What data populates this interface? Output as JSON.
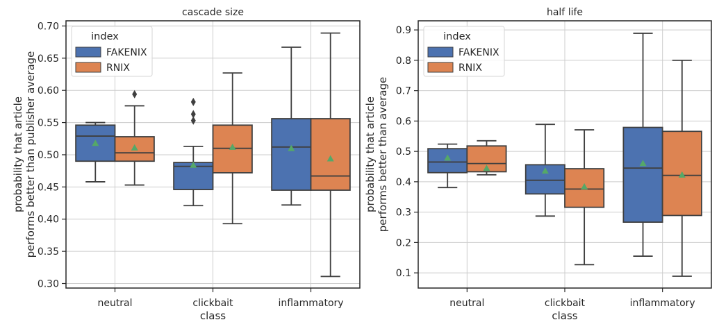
{
  "chart_data": [
    {
      "type": "box",
      "title": "cascade size",
      "xlabel": "class",
      "ylabel_lines": [
        "probability that article",
        "performs better than publisher average"
      ],
      "categories": [
        "neutral",
        "clickbait",
        "inflammatory"
      ],
      "ylim": [
        0.293,
        0.708
      ],
      "yticks": [
        0.3,
        0.35,
        0.4,
        0.45,
        0.5,
        0.55,
        0.6,
        0.65,
        0.7
      ],
      "ytick_labels": [
        "0.30",
        "0.35",
        "0.40",
        "0.45",
        "0.50",
        "0.55",
        "0.60",
        "0.65",
        "0.70"
      ],
      "grid": true,
      "legend": {
        "title": "index",
        "position": "top-left",
        "entries": [
          "FAKENIX",
          "RNIX"
        ]
      },
      "series": [
        {
          "name": "FAKENIX",
          "color": "#4c72b0",
          "boxes": [
            {
              "whislo": 0.458,
              "q1": 0.49,
              "med": 0.529,
              "q3": 0.546,
              "whishi": 0.55,
              "mean": 0.518,
              "fliers": []
            },
            {
              "whislo": 0.421,
              "q1": 0.446,
              "med": 0.482,
              "q3": 0.488,
              "whishi": 0.513,
              "mean": 0.484,
              "fliers": [
                0.553,
                0.563,
                0.582
              ]
            },
            {
              "whislo": 0.422,
              "q1": 0.445,
              "med": 0.512,
              "q3": 0.556,
              "whishi": 0.667,
              "mean": 0.51,
              "fliers": []
            }
          ]
        },
        {
          "name": "RNIX",
          "color": "#dd8452",
          "boxes": [
            {
              "whislo": 0.453,
              "q1": 0.49,
              "med": 0.503,
              "q3": 0.528,
              "whishi": 0.576,
              "mean": 0.511,
              "fliers": [
                0.594
              ]
            },
            {
              "whislo": 0.393,
              "q1": 0.472,
              "med": 0.51,
              "q3": 0.546,
              "whishi": 0.627,
              "mean": 0.512,
              "fliers": []
            },
            {
              "whislo": 0.311,
              "q1": 0.445,
              "med": 0.467,
              "q3": 0.556,
              "whishi": 0.689,
              "mean": 0.494,
              "fliers": []
            }
          ]
        }
      ]
    },
    {
      "type": "box",
      "title": "half life",
      "xlabel": "class",
      "ylabel_lines": [
        "probability that article",
        "performs better than average"
      ],
      "categories": [
        "neutral",
        "clickbait",
        "inflammatory"
      ],
      "ylim": [
        0.05,
        0.93
      ],
      "yticks": [
        0.1,
        0.2,
        0.3,
        0.4,
        0.5,
        0.6,
        0.7,
        0.8,
        0.9
      ],
      "ytick_labels": [
        "0.1",
        "0.2",
        "0.3",
        "0.4",
        "0.5",
        "0.6",
        "0.7",
        "0.8",
        "0.9"
      ],
      "grid": true,
      "legend": {
        "title": "index",
        "position": "top-left",
        "entries": [
          "FAKENIX",
          "RNIX"
        ]
      },
      "series": [
        {
          "name": "FAKENIX",
          "color": "#4c72b0",
          "boxes": [
            {
              "whislo": 0.381,
              "q1": 0.43,
              "med": 0.465,
              "q3": 0.509,
              "whishi": 0.524,
              "mean": 0.479,
              "fliers": []
            },
            {
              "whislo": 0.287,
              "q1": 0.36,
              "med": 0.405,
              "q3": 0.456,
              "whishi": 0.589,
              "mean": 0.436,
              "fliers": []
            },
            {
              "whislo": 0.155,
              "q1": 0.267,
              "med": 0.445,
              "q3": 0.579,
              "whishi": 0.889,
              "mean": 0.461,
              "fliers": []
            }
          ]
        },
        {
          "name": "RNIX",
          "color": "#dd8452",
          "boxes": [
            {
              "whislo": 0.423,
              "q1": 0.433,
              "med": 0.46,
              "q3": 0.518,
              "whishi": 0.535,
              "mean": 0.445,
              "fliers": []
            },
            {
              "whislo": 0.127,
              "q1": 0.316,
              "med": 0.376,
              "q3": 0.443,
              "whishi": 0.571,
              "mean": 0.384,
              "fliers": []
            },
            {
              "whislo": 0.089,
              "q1": 0.289,
              "med": 0.421,
              "q3": 0.566,
              "whishi": 0.8,
              "mean": 0.423,
              "fliers": []
            }
          ]
        }
      ]
    }
  ],
  "colors": {
    "mean_marker": "#55a868",
    "box_edge": "#3f3f3f",
    "grid": "#cccccc",
    "axes": "#262626"
  }
}
